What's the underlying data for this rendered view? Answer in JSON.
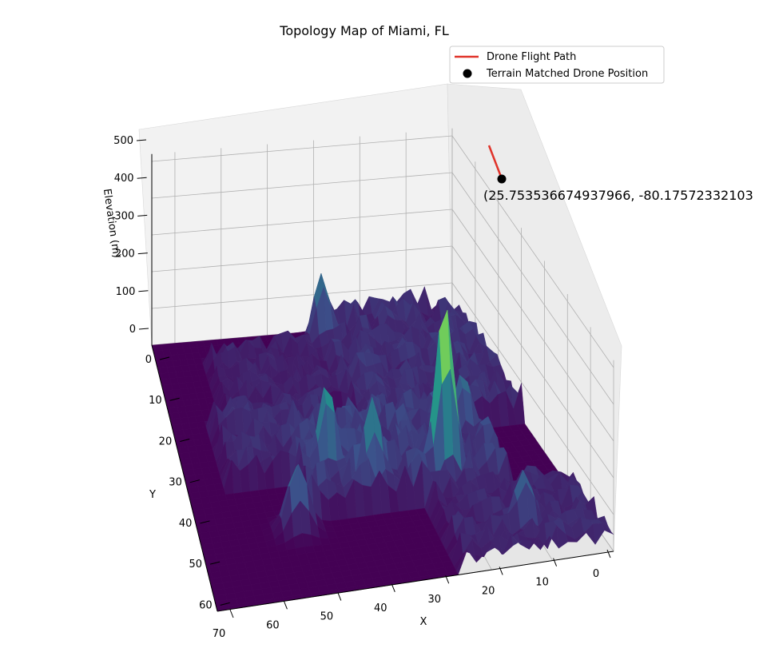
{
  "chart_data": {
    "type": "surface3d",
    "title": "Topology Map of Miami, FL",
    "xlabel": "X",
    "ylabel": "Y",
    "zlabel": "Elevation (m)",
    "xlim": [
      0,
      70
    ],
    "ylim": [
      0,
      65
    ],
    "zlim": [
      0,
      520
    ],
    "x_ticks": [
      "0",
      "10",
      "20",
      "30",
      "40",
      "50",
      "60",
      "70"
    ],
    "y_ticks": [
      "0",
      "10",
      "20",
      "30",
      "40",
      "50",
      "60"
    ],
    "z_ticks": [
      "0",
      "100",
      "200",
      "300",
      "400",
      "500"
    ],
    "colormap": "viridis",
    "grid": true,
    "legend_position": "top-right",
    "legend": [
      {
        "label": "Drone Flight Path",
        "type": "line",
        "color": "#e0332a"
      },
      {
        "label": "Terrain Matched Drone Position",
        "type": "marker",
        "color": "#000000"
      }
    ],
    "peaks": [
      {
        "x": 45,
        "y": 20,
        "z": 490
      },
      {
        "x": 45,
        "y": 33,
        "z": 260
      },
      {
        "x": 41,
        "y": 40,
        "z": 280
      },
      {
        "x": 35,
        "y": 13,
        "z": 200
      },
      {
        "x": 62,
        "y": 12,
        "z": 180
      },
      {
        "x": 52,
        "y": 48,
        "z": 190
      },
      {
        "x": 5,
        "y": 30,
        "z": 210
      }
    ],
    "flight_path": {
      "x": [
        18,
        17
      ],
      "y": [
        12,
        12
      ],
      "z": [
        480,
        420
      ]
    },
    "drone_position": {
      "x": 17,
      "y": 12,
      "z": 420
    },
    "annotation": "(25.753536674937966, -80.17572332103"
  }
}
